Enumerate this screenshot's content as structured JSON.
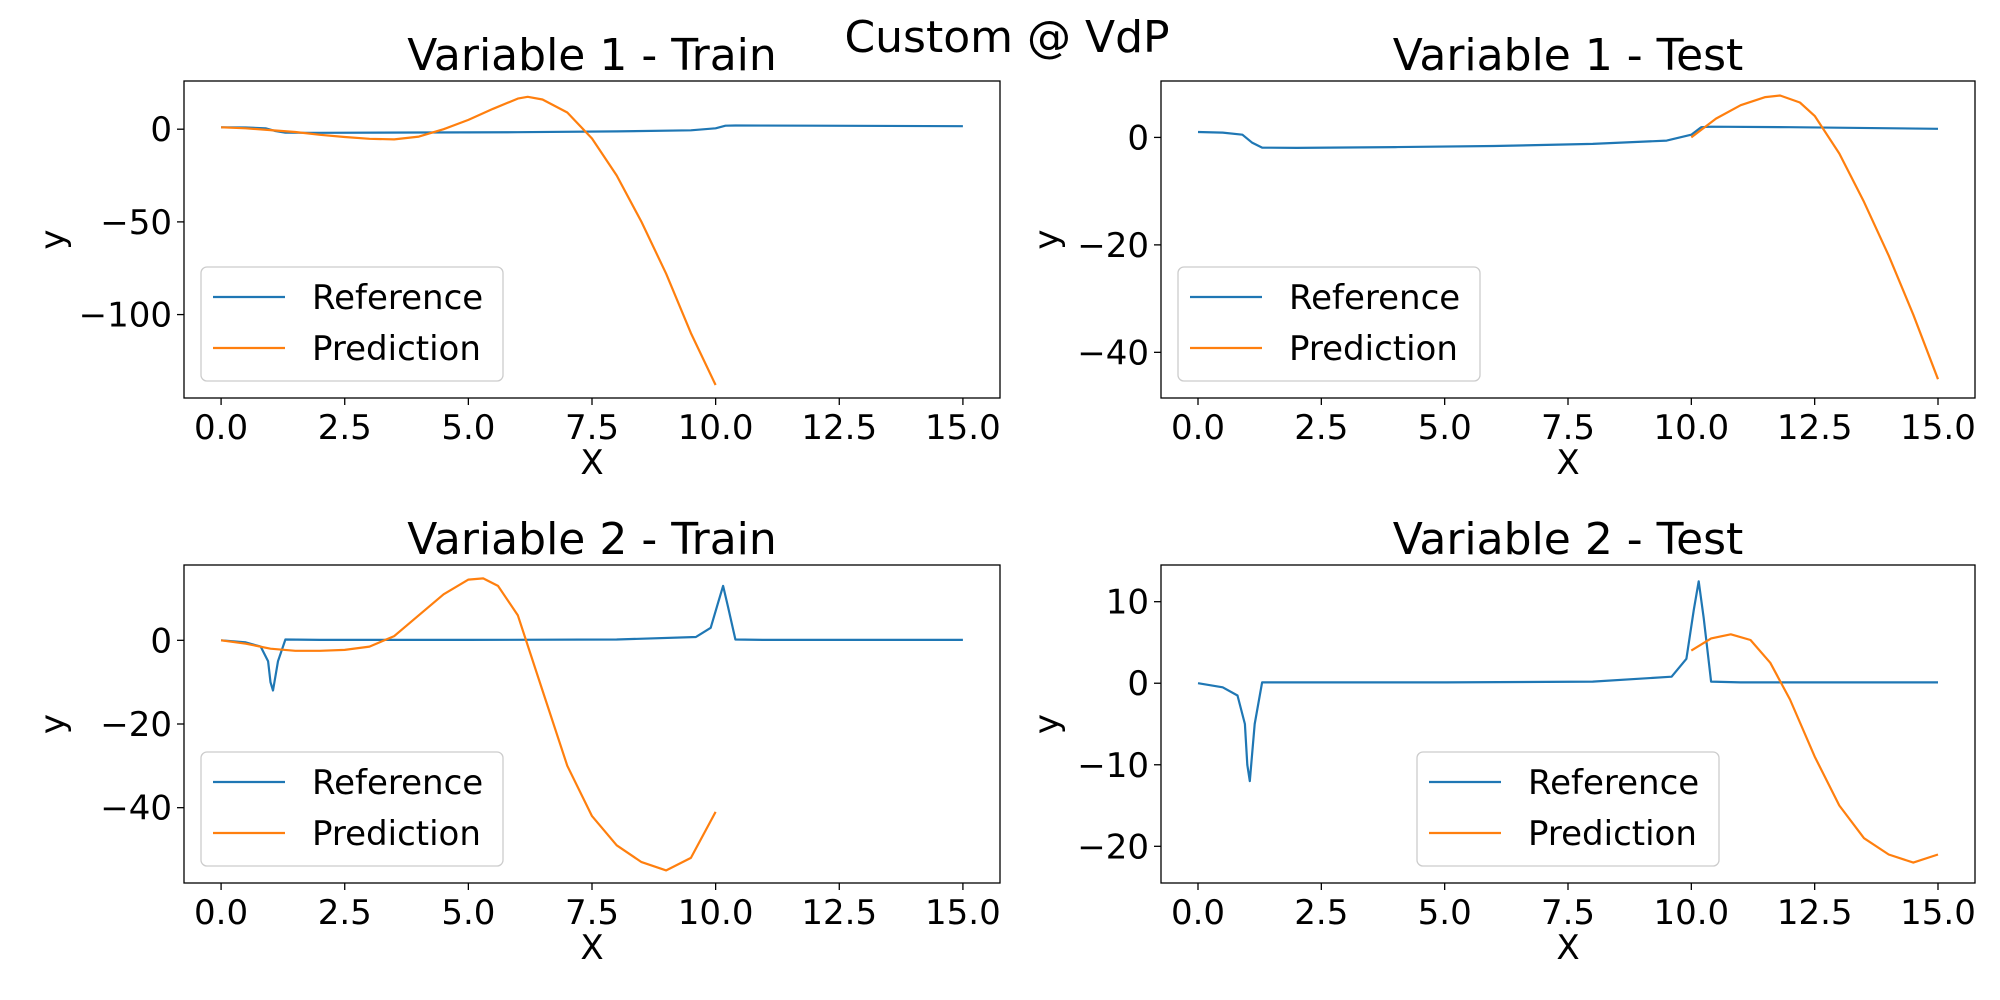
{
  "figure": {
    "suptitle": "Custom @ VdP"
  },
  "colors": {
    "reference": "#1f77b4",
    "prediction": "#ff7f0e",
    "axes": "#000000",
    "legend_border": "#cccccc"
  },
  "chart_data": [
    {
      "type": "line",
      "title": "Variable 1 - Train",
      "xlabel": "X",
      "ylabel": "y",
      "xlim": [
        -0.75,
        15.75
      ],
      "ylim": [
        -145,
        26
      ],
      "xticks": [
        0,
        2.5,
        5,
        7.5,
        10,
        12.5,
        15
      ],
      "xtick_labels": [
        "0.0",
        "2.5",
        "5.0",
        "7.5",
        "10.0",
        "12.5",
        "15.0"
      ],
      "yticks": [
        0,
        -50,
        -100
      ],
      "ytick_labels": [
        "0",
        "−50",
        "−100"
      ],
      "legend": {
        "position": "lower-left",
        "entries": [
          "Reference",
          "Prediction"
        ]
      },
      "series": [
        {
          "name": "Reference",
          "color": "#1f77b4",
          "x": [
            0,
            0.5,
            0.9,
            1.1,
            1.3,
            2,
            4,
            6,
            8,
            9.5,
            10.0,
            10.2,
            10.4,
            12,
            15
          ],
          "y": [
            1.0,
            0.9,
            0.5,
            -1.0,
            -1.9,
            -1.95,
            -1.8,
            -1.6,
            -1.2,
            -0.6,
            0.5,
            1.9,
            2.0,
            1.9,
            1.6
          ]
        },
        {
          "name": "Prediction",
          "color": "#ff7f0e",
          "x": [
            0,
            0.5,
            1,
            1.5,
            2,
            2.5,
            3,
            3.5,
            4,
            4.5,
            5,
            5.5,
            6,
            6.2,
            6.5,
            7,
            7.5,
            8,
            8.5,
            9,
            9.5,
            10
          ],
          "y": [
            1,
            0.5,
            -0.5,
            -1.5,
            -3,
            -4.2,
            -5.2,
            -5.5,
            -4,
            0,
            5,
            11,
            16.5,
            17.5,
            16,
            9,
            -5,
            -25,
            -50,
            -78,
            -110,
            -138
          ]
        }
      ]
    },
    {
      "type": "line",
      "title": "Variable 1 - Test",
      "xlabel": "X",
      "ylabel": "y",
      "xlim": [
        -0.75,
        15.75
      ],
      "ylim": [
        -48.5,
        10.5
      ],
      "xticks": [
        0,
        2.5,
        5,
        7.5,
        10,
        12.5,
        15
      ],
      "xtick_labels": [
        "0.0",
        "2.5",
        "5.0",
        "7.5",
        "10.0",
        "12.5",
        "15.0"
      ],
      "yticks": [
        0,
        -20,
        -40
      ],
      "ytick_labels": [
        "0",
        "−20",
        "−40"
      ],
      "legend": {
        "position": "lower-left",
        "entries": [
          "Reference",
          "Prediction"
        ]
      },
      "series": [
        {
          "name": "Reference",
          "color": "#1f77b4",
          "x": [
            0,
            0.5,
            0.9,
            1.1,
            1.3,
            2,
            4,
            6,
            8,
            9.5,
            10.0,
            10.2,
            10.4,
            12,
            15
          ],
          "y": [
            1.0,
            0.9,
            0.5,
            -1.0,
            -1.9,
            -1.95,
            -1.8,
            -1.6,
            -1.2,
            -0.6,
            0.5,
            1.9,
            2.0,
            1.9,
            1.6
          ]
        },
        {
          "name": "Prediction",
          "color": "#ff7f0e",
          "x": [
            10,
            10.5,
            11,
            11.5,
            11.8,
            12.2,
            12.5,
            13,
            13.5,
            14,
            14.5,
            15
          ],
          "y": [
            0,
            3.5,
            6,
            7.5,
            7.8,
            6.5,
            4,
            -3,
            -12,
            -22,
            -33,
            -45
          ]
        }
      ]
    },
    {
      "type": "line",
      "title": "Variable 2 - Train",
      "xlabel": "X",
      "ylabel": "y",
      "xlim": [
        -0.75,
        15.75
      ],
      "ylim": [
        -58,
        18
      ],
      "xticks": [
        0,
        2.5,
        5,
        7.5,
        10,
        12.5,
        15
      ],
      "xtick_labels": [
        "0.0",
        "2.5",
        "5.0",
        "7.5",
        "10.0",
        "12.5",
        "15.0"
      ],
      "yticks": [
        0,
        -20,
        -40
      ],
      "ytick_labels": [
        "0",
        "−20",
        "−40"
      ],
      "legend": {
        "position": "lower-left",
        "entries": [
          "Reference",
          "Prediction"
        ]
      },
      "series": [
        {
          "name": "Reference",
          "color": "#1f77b4",
          "x": [
            0,
            0.5,
            0.8,
            0.95,
            1.0,
            1.05,
            1.15,
            1.3,
            2,
            5,
            8,
            9.6,
            9.9,
            10.05,
            10.15,
            10.25,
            10.4,
            11,
            15
          ],
          "y": [
            0,
            -0.5,
            -1.5,
            -5,
            -10,
            -12,
            -5,
            0.2,
            0.1,
            0.1,
            0.2,
            0.8,
            3,
            9,
            13,
            8,
            0.2,
            0.1,
            0.1
          ]
        },
        {
          "name": "Prediction",
          "color": "#ff7f0e",
          "x": [
            0,
            0.5,
            1,
            1.5,
            2,
            2.5,
            3,
            3.5,
            4,
            4.5,
            5,
            5.3,
            5.6,
            6,
            6.5,
            7,
            7.5,
            8,
            8.5,
            9,
            9.5,
            10
          ],
          "y": [
            0,
            -0.8,
            -2,
            -2.5,
            -2.5,
            -2.3,
            -1.5,
            1,
            6,
            11,
            14.5,
            14.8,
            13,
            6,
            -12,
            -30,
            -42,
            -49,
            -53,
            -55,
            -52,
            -41
          ]
        }
      ]
    },
    {
      "type": "line",
      "title": "Variable 2 - Test",
      "xlabel": "X",
      "ylabel": "y",
      "xlim": [
        -0.75,
        15.75
      ],
      "ylim": [
        -24.5,
        14.5
      ],
      "xticks": [
        0,
        2.5,
        5,
        7.5,
        10,
        12.5,
        15
      ],
      "xtick_labels": [
        "0.0",
        "2.5",
        "5.0",
        "7.5",
        "10.0",
        "12.5",
        "15.0"
      ],
      "yticks": [
        10,
        0,
        -10,
        -20
      ],
      "ytick_labels": [
        "10",
        "0",
        "−10",
        "−20"
      ],
      "legend": {
        "position": "lower-center",
        "entries": [
          "Reference",
          "Prediction"
        ]
      },
      "series": [
        {
          "name": "Reference",
          "color": "#1f77b4",
          "x": [
            0,
            0.5,
            0.8,
            0.95,
            1.0,
            1.05,
            1.15,
            1.3,
            2,
            5,
            8,
            9.6,
            9.9,
            10.05,
            10.15,
            10.25,
            10.4,
            11,
            15
          ],
          "y": [
            0,
            -0.5,
            -1.5,
            -5,
            -10,
            -12,
            -5,
            0.1,
            0.1,
            0.1,
            0.2,
            0.8,
            3,
            9,
            12.5,
            8,
            0.2,
            0.1,
            0.1
          ]
        },
        {
          "name": "Prediction",
          "color": "#ff7f0e",
          "x": [
            10,
            10.4,
            10.8,
            11.2,
            11.6,
            12,
            12.5,
            13,
            13.5,
            14,
            14.5,
            15
          ],
          "y": [
            4,
            5.5,
            6,
            5.3,
            2.5,
            -2,
            -9,
            -15,
            -19,
            -21,
            -22,
            -21
          ]
        }
      ]
    }
  ]
}
